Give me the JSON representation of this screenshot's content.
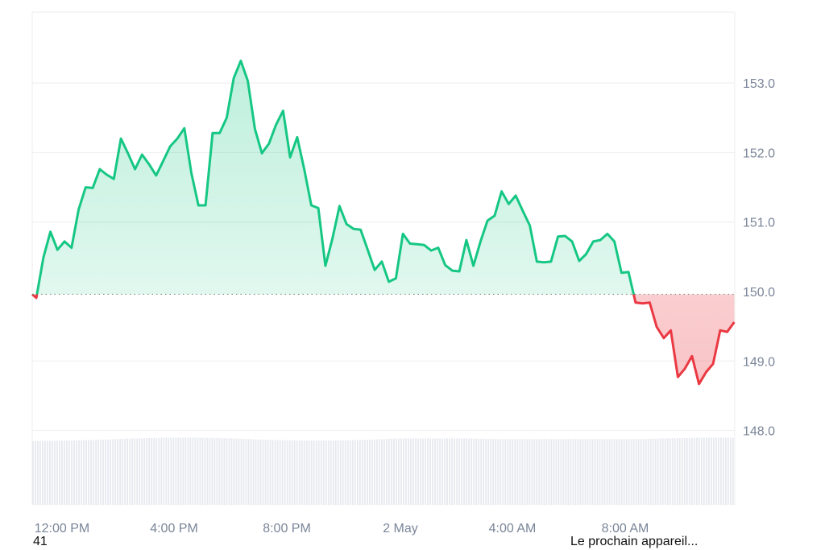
{
  "chart_data": {
    "type": "area",
    "title": "",
    "xlabel": "",
    "ylabel": "",
    "ylim": [
      147.0,
      153.5
    ],
    "y_ticks": [
      "148.0",
      "149.0",
      "150.0",
      "151.0",
      "152.0",
      "153.0"
    ],
    "x_ticks": [
      "12:00 PM",
      "4:00 PM",
      "8:00 PM",
      "2 May",
      "4:00 AM",
      "8:00 AM"
    ],
    "baseline": 149.96,
    "baseline_style": "dotted",
    "grid": true,
    "colors": {
      "above": "#16c784",
      "below": "#ea3943",
      "volume": "#e6e9ee",
      "grid": "#eeeeee",
      "tick": "#7a8599"
    },
    "x_interval": "15 min, 1 May 11:00 AM to 2 May 11:45 AM",
    "x": [
      "1 May 11:00",
      "11:15",
      "11:30",
      "11:45",
      "12:00",
      "12:15",
      "12:30",
      "12:45",
      "13:00",
      "13:15",
      "13:30",
      "13:45",
      "14:00",
      "14:15",
      "14:30",
      "14:45",
      "15:00",
      "15:15",
      "15:30",
      "15:45",
      "16:00",
      "16:15",
      "16:30",
      "16:45",
      "17:00",
      "17:15",
      "17:30",
      "17:45",
      "18:00",
      "18:15",
      "18:30",
      "18:45",
      "19:00",
      "19:15",
      "19:30",
      "19:45",
      "20:00",
      "20:15",
      "20:30",
      "20:45",
      "21:00",
      "21:15",
      "21:30",
      "21:45",
      "22:00",
      "22:15",
      "22:30",
      "22:45",
      "23:00",
      "23:15",
      "23:30",
      "23:45",
      "2 May 00:00",
      "00:15",
      "00:30",
      "00:45",
      "01:00",
      "01:15",
      "01:30",
      "01:45",
      "02:00",
      "02:15",
      "02:30",
      "02:45",
      "03:00",
      "03:15",
      "03:30",
      "03:45",
      "04:00",
      "04:15",
      "04:30",
      "04:45",
      "05:00",
      "05:15",
      "05:30",
      "05:45",
      "06:00",
      "06:15",
      "06:30",
      "06:45",
      "07:00",
      "07:15",
      "07:30",
      "07:45",
      "08:00",
      "08:15",
      "08:30",
      "08:45",
      "09:00",
      "09:15",
      "09:30",
      "09:45",
      "10:00",
      "10:15",
      "10:30",
      "10:45",
      "11:00",
      "11:15",
      "11:30",
      "11:45"
    ],
    "values": [
      149.91,
      150.49,
      150.86,
      150.6,
      150.72,
      150.63,
      151.18,
      151.5,
      151.49,
      151.76,
      151.68,
      151.62,
      152.2,
      151.99,
      151.76,
      151.97,
      151.83,
      151.67,
      151.88,
      152.09,
      152.2,
      152.35,
      151.7,
      151.24,
      151.24,
      152.28,
      152.28,
      152.5,
      153.07,
      153.32,
      153.03,
      152.34,
      151.99,
      152.13,
      152.4,
      152.6,
      151.93,
      152.22,
      151.76,
      151.24,
      151.2,
      150.37,
      150.76,
      151.23,
      150.97,
      150.9,
      150.89,
      150.6,
      150.31,
      150.43,
      150.14,
      150.19,
      150.83,
      150.69,
      150.68,
      150.67,
      150.59,
      150.63,
      150.38,
      150.3,
      150.29,
      150.74,
      150.37,
      150.72,
      151.02,
      151.09,
      151.44,
      151.26,
      151.38,
      151.16,
      150.95,
      150.43,
      150.42,
      150.43,
      150.79,
      150.8,
      150.72,
      150.44,
      150.54,
      150.72,
      150.74,
      150.83,
      150.72,
      150.27,
      150.28,
      149.84,
      149.83,
      149.84,
      149.49,
      149.33,
      149.44,
      148.77,
      148.89,
      149.07,
      148.67,
      148.84,
      148.96,
      149.44,
      149.42,
      149.56
    ],
    "volume_relative": [
      0.92,
      0.93,
      0.94,
      0.96,
      0.97,
      0.97,
      0.96,
      0.94,
      0.93,
      0.93,
      0.94,
      0.96,
      0.96,
      0.96,
      0.95,
      0.95,
      0.95,
      0.95,
      0.95,
      0.96,
      0.97,
      0.97
    ]
  },
  "footer": {
    "left_text": "41",
    "right_text": "Le prochain appareil..."
  }
}
